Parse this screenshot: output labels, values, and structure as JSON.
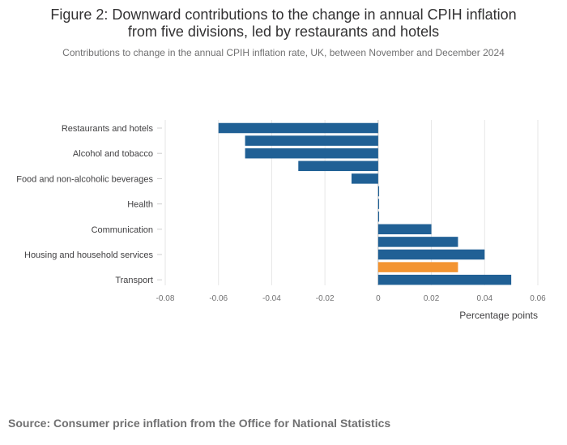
{
  "title_line1": "Figure 2: Downward contributions to the change in annual CPIH inflation",
  "title_line2": "from five divisions, led by restaurants and hotels",
  "subtitle": "Contributions to change in the annual CPIH inflation rate, UK, between November and December 2024",
  "source": "Source: Consumer price inflation from the Office for National Statistics",
  "chart_data": {
    "type": "bar",
    "orientation": "horizontal",
    "xlabel": "Percentage points",
    "xlim": [
      -0.08,
      0.06
    ],
    "xticks": [
      -0.08,
      -0.06,
      -0.04,
      -0.02,
      0,
      0.02,
      0.04,
      0.06
    ],
    "xtick_labels": [
      "-0.08",
      "-0.06",
      "-0.04",
      "-0.02",
      "0",
      "0.02",
      "0.04",
      "0.06"
    ],
    "grid": true,
    "bars": [
      {
        "label": "Restaurants and hotels",
        "value": -0.06,
        "color": "#206095"
      },
      {
        "label": "",
        "value": -0.05,
        "color": "#206095"
      },
      {
        "label": "Alcohol and tobacco",
        "value": -0.05,
        "color": "#206095"
      },
      {
        "label": "",
        "value": -0.03,
        "color": "#206095"
      },
      {
        "label": "Food and non-alcoholic beverages",
        "value": -0.01,
        "color": "#206095"
      },
      {
        "label": "",
        "value": 0.0003,
        "color": "#206095"
      },
      {
        "label": "Health",
        "value": 0.0003,
        "color": "#206095"
      },
      {
        "label": "",
        "value": 0.0003,
        "color": "#206095"
      },
      {
        "label": "Communication",
        "value": 0.02,
        "color": "#206095"
      },
      {
        "label": "",
        "value": 0.03,
        "color": "#206095"
      },
      {
        "label": "Housing and household services",
        "value": 0.04,
        "color": "#206095"
      },
      {
        "label": "",
        "value": 0.03,
        "color": "#f39431"
      },
      {
        "label": "Transport",
        "value": 0.05,
        "color": "#206095"
      }
    ]
  }
}
